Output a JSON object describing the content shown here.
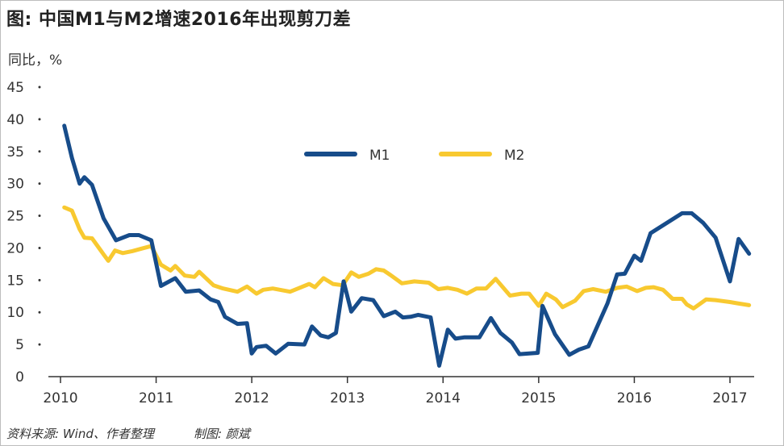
{
  "title": "图: 中国M1与M2增速2016年出现剪刀差",
  "y_unit_label": "同比，%",
  "source": "资料来源: Wind、作者整理",
  "maker": "制图: 颜斌",
  "colors": {
    "M1": "#174c8a",
    "M2": "#f8c930",
    "axis": "#333333"
  },
  "chart_data": {
    "type": "line",
    "title": "图: 中国M1与M2增速2016年出现剪刀差",
    "xlabel": "",
    "ylabel": "同比，%",
    "ylim": [
      0,
      45
    ],
    "xlim": [
      2010,
      2017.3
    ],
    "y_ticks": [
      "0",
      "5",
      "10",
      "15",
      "20",
      "25",
      "30",
      "35",
      "40",
      "45"
    ],
    "x_ticks": [
      "2010",
      "2011",
      "2012",
      "2013",
      "2014",
      "2015",
      "2016",
      "2017"
    ],
    "legend_position": "top-center",
    "grid": false,
    "series": [
      {
        "name": "M1",
        "x": [
          2010.04,
          2010.12,
          2010.2,
          2010.25,
          2010.33,
          2010.45,
          2010.58,
          2010.72,
          2010.82,
          2010.95,
          2011.05,
          2011.2,
          2011.31,
          2011.45,
          2011.57,
          2011.65,
          2011.72,
          2011.85,
          2011.95,
          2012.0,
          2012.05,
          2012.15,
          2012.25,
          2012.38,
          2012.55,
          2012.63,
          2012.72,
          2012.8,
          2012.88,
          2012.96,
          2013.04,
          2013.15,
          2013.27,
          2013.38,
          2013.5,
          2013.58,
          2013.66,
          2013.74,
          2013.87,
          2013.96,
          2014.05,
          2014.13,
          2014.22,
          2014.38,
          2014.5,
          2014.6,
          2014.72,
          2014.8,
          2014.9,
          2014.99,
          2015.04,
          2015.17,
          2015.32,
          2015.42,
          2015.52,
          2015.72,
          2015.82,
          2015.9,
          2016.0,
          2016.07,
          2016.17,
          2016.5,
          2016.6,
          2016.72,
          2016.85,
          2017.0,
          2017.09,
          2017.2
        ],
        "values": [
          39,
          34,
          30,
          31,
          29.8,
          24.6,
          21.2,
          22,
          22,
          21.2,
          14.1,
          15.3,
          13.2,
          13.4,
          12,
          11.6,
          9.3,
          8.2,
          8.3,
          3.6,
          4.6,
          4.8,
          3.6,
          5.1,
          5.0,
          7.8,
          6.4,
          6.1,
          6.8,
          14.8,
          10.1,
          12.2,
          11.9,
          9.4,
          10.1,
          9.2,
          9.3,
          9.6,
          9.2,
          1.7,
          7.3,
          5.9,
          6.1,
          6.1,
          9.1,
          6.8,
          5.3,
          3.5,
          3.6,
          3.7,
          11.0,
          6.6,
          3.4,
          4.2,
          4.7,
          11.4,
          15.9,
          16.0,
          18.8,
          18.0,
          22.3,
          25.4,
          25.4,
          23.9,
          21.6,
          14.8,
          21.4,
          19.1
        ]
      },
      {
        "name": "M2",
        "x": [
          2010.04,
          2010.12,
          2010.2,
          2010.25,
          2010.33,
          2010.45,
          2010.5,
          2010.57,
          2010.65,
          2010.75,
          2010.85,
          2010.95,
          2011.05,
          2011.15,
          2011.2,
          2011.3,
          2011.4,
          2011.45,
          2011.6,
          2011.7,
          2011.85,
          2011.95,
          2012.05,
          2012.12,
          2012.22,
          2012.4,
          2012.5,
          2012.6,
          2012.66,
          2012.75,
          2012.85,
          2012.95,
          2013.04,
          2013.12,
          2013.22,
          2013.3,
          2013.38,
          2013.45,
          2013.57,
          2013.7,
          2013.85,
          2013.95,
          2014.05,
          2014.15,
          2014.25,
          2014.35,
          2014.45,
          2014.55,
          2014.7,
          2014.82,
          2014.9,
          2015.0,
          2015.08,
          2015.18,
          2015.25,
          2015.38,
          2015.47,
          2015.57,
          2015.7,
          2015.82,
          2015.92,
          2016.03,
          2016.12,
          2016.2,
          2016.3,
          2016.4,
          2016.5,
          2016.55,
          2016.62,
          2016.75,
          2016.85,
          2017.0,
          2017.08,
          2017.2
        ],
        "values": [
          26.3,
          25.8,
          22.9,
          21.6,
          21.5,
          19.0,
          18.0,
          19.6,
          19.2,
          19.5,
          19.9,
          20.3,
          17.4,
          16.5,
          17.2,
          15.7,
          15.5,
          16.3,
          14.2,
          13.7,
          13.2,
          14.0,
          12.9,
          13.5,
          13.7,
          13.2,
          13.8,
          14.4,
          13.9,
          15.3,
          14.4,
          14.2,
          16.2,
          15.5,
          16.0,
          16.7,
          16.5,
          15.8,
          14.5,
          14.8,
          14.6,
          13.6,
          13.8,
          13.5,
          12.9,
          13.7,
          13.7,
          15.2,
          12.6,
          12.9,
          12.9,
          11.0,
          12.9,
          12.0,
          10.8,
          11.8,
          13.3,
          13.6,
          13.2,
          13.8,
          14.0,
          13.3,
          13.8,
          13.9,
          13.5,
          12.1,
          12.1,
          11.2,
          10.6,
          12.0,
          11.9,
          11.6,
          11.4,
          11.1
        ]
      }
    ]
  }
}
